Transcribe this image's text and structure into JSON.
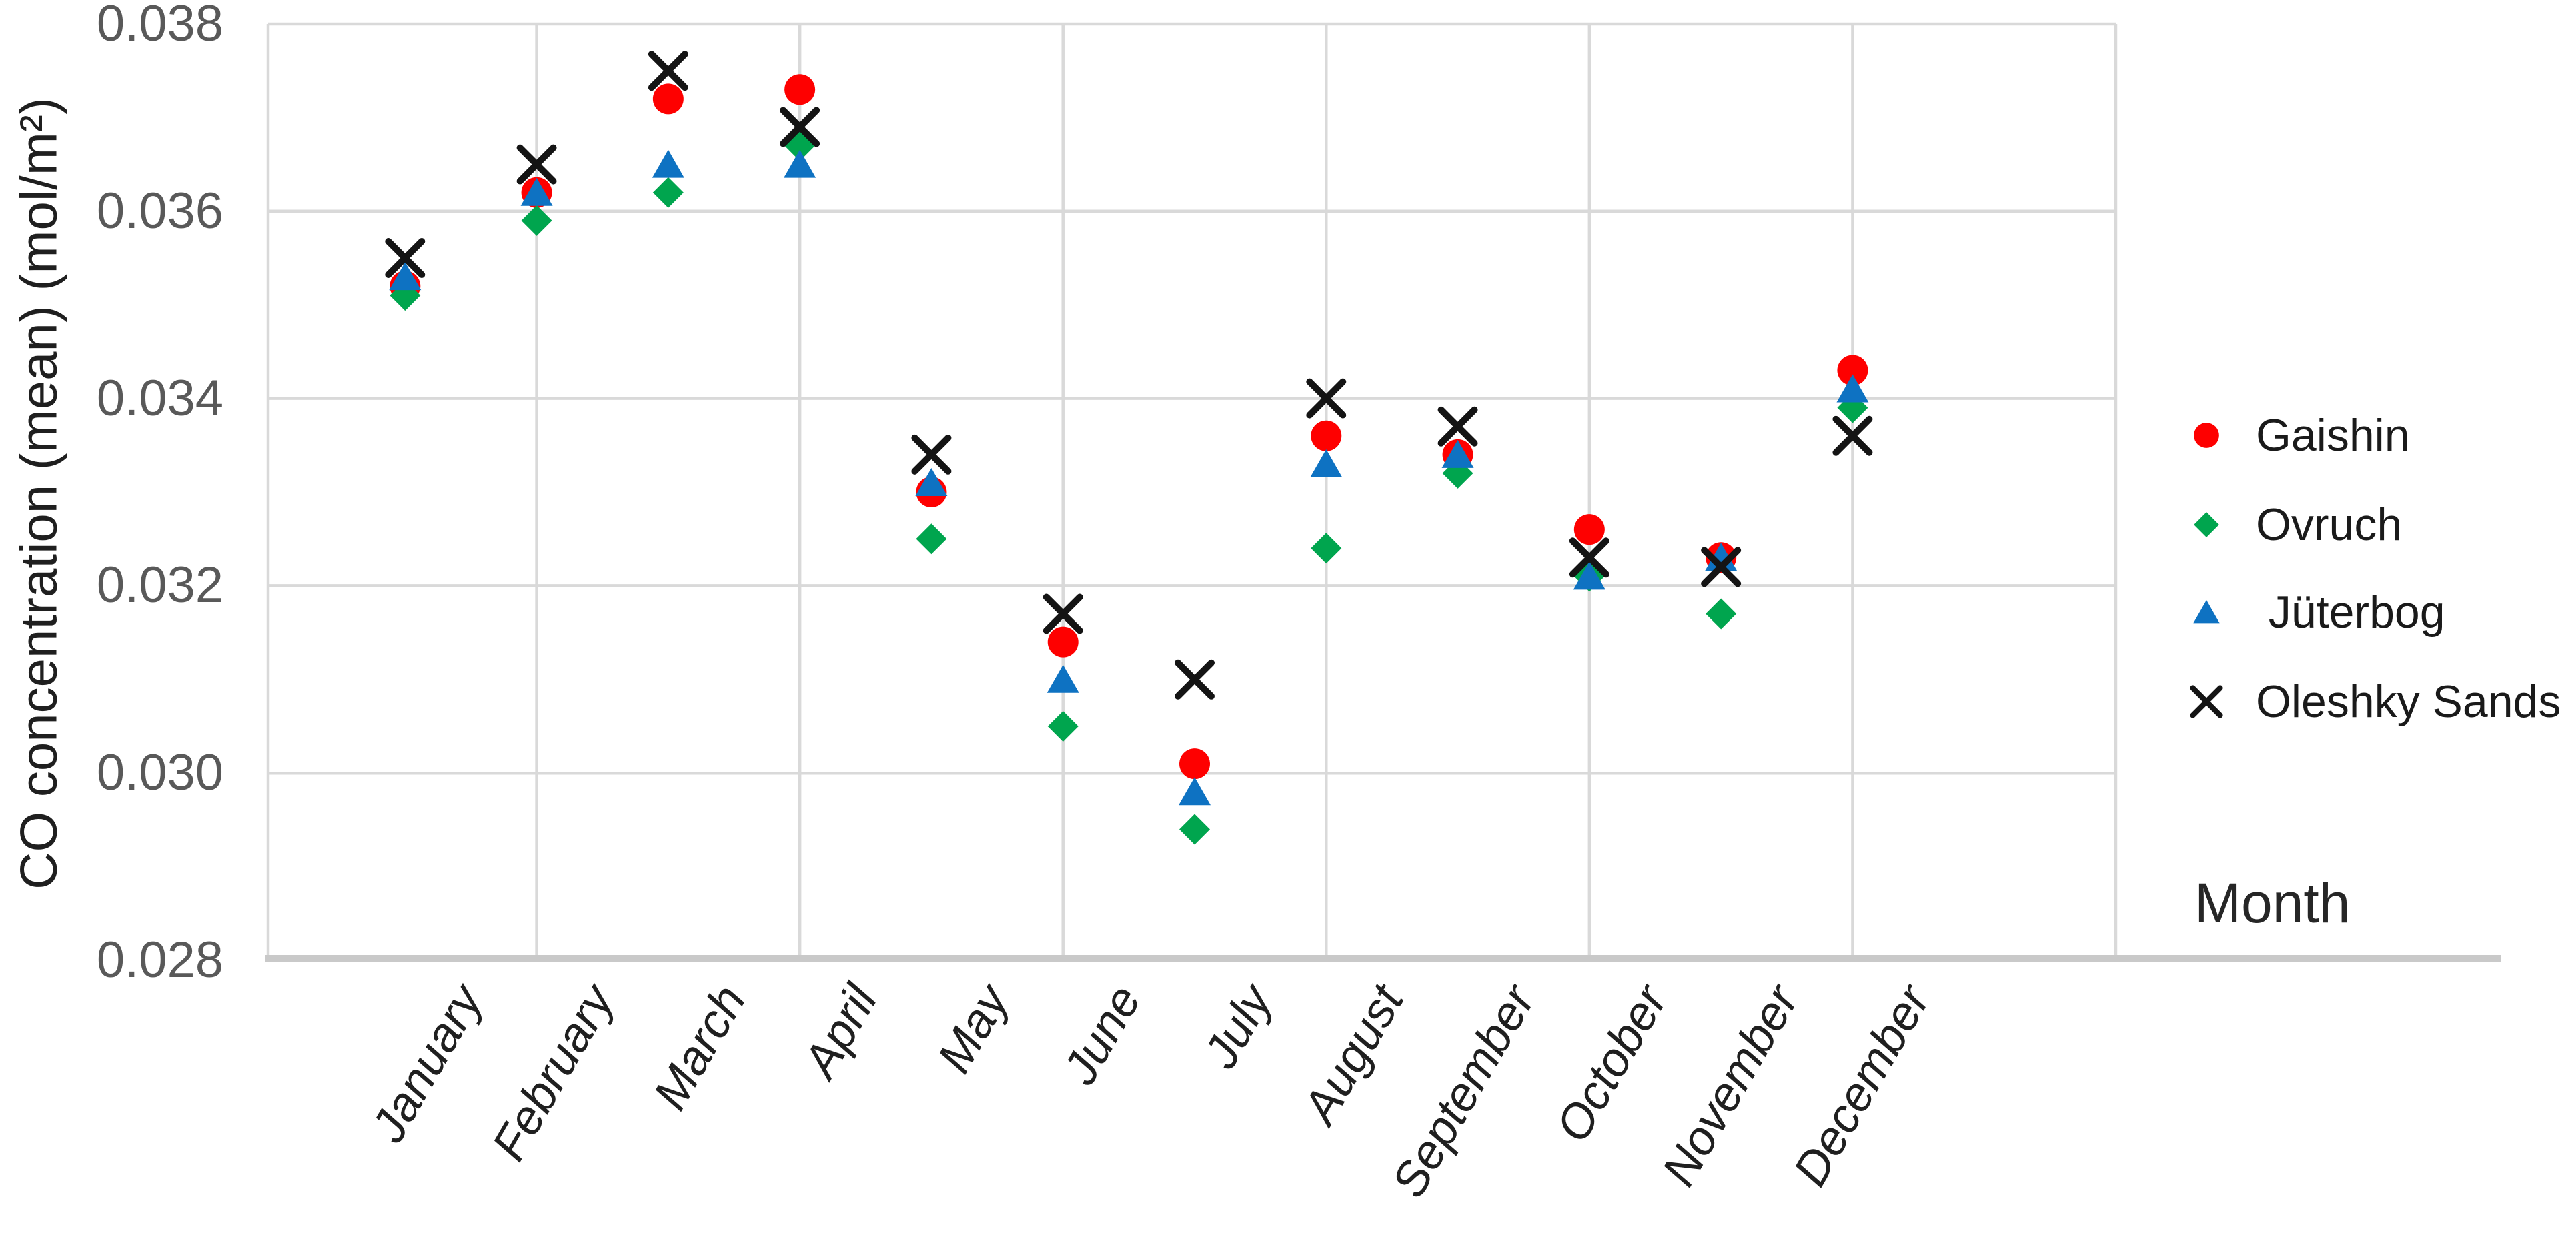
{
  "chart_data": {
    "type": "scatter",
    "title": "",
    "xlabel": "Month",
    "ylabel": "CO concentration (mean) (mol/m²)",
    "x_categories": [
      "January",
      "February",
      "March",
      "April",
      "May",
      "June",
      "July",
      "August",
      "September",
      "October",
      "November",
      "December"
    ],
    "series": [
      {
        "name": "Gaishin",
        "marker": "circle",
        "color": "#FE0000",
        "values": [
          0.0352,
          0.0362,
          0.0372,
          0.0373,
          0.033,
          0.0314,
          0.0301,
          0.0336,
          0.0334,
          0.0326,
          0.0323,
          0.0343
        ]
      },
      {
        "name": "Ovruch",
        "marker": "diamond",
        "color": "#00A54E",
        "values": [
          0.0351,
          0.0359,
          0.0362,
          0.0367,
          0.0325,
          0.0305,
          0.0294,
          0.0324,
          0.0332,
          0.0321,
          0.0317,
          0.0339
        ]
      },
      {
        "name": "Jüterbog",
        "marker": "triangle",
        "color": "#0E72C2",
        "values": [
          0.0353,
          0.0362,
          0.0365,
          0.0365,
          0.0331,
          0.031,
          0.0298,
          0.0333,
          0.0334,
          0.0321,
          0.0323,
          0.0341
        ]
      },
      {
        "name": "Oleshky Sands",
        "marker": "x",
        "color": "#141414",
        "values": [
          0.0355,
          0.0365,
          0.0375,
          0.0369,
          0.0334,
          0.0317,
          0.031,
          0.034,
          0.0337,
          0.0323,
          0.0322,
          0.0336
        ]
      }
    ],
    "ylim": [
      0.028,
      0.038
    ],
    "ytick_interval": 0.002,
    "ytick_labels": [
      "0.038",
      "0.036",
      "0.034",
      "0.032",
      "0.030",
      "0.028"
    ],
    "grid": true,
    "legend_position": "right"
  },
  "colors": {
    "gridline": "#D9D9D9",
    "axis_line": "#C9C9C9",
    "tick_text": "#595959",
    "label_text": "#1F1F1F"
  }
}
